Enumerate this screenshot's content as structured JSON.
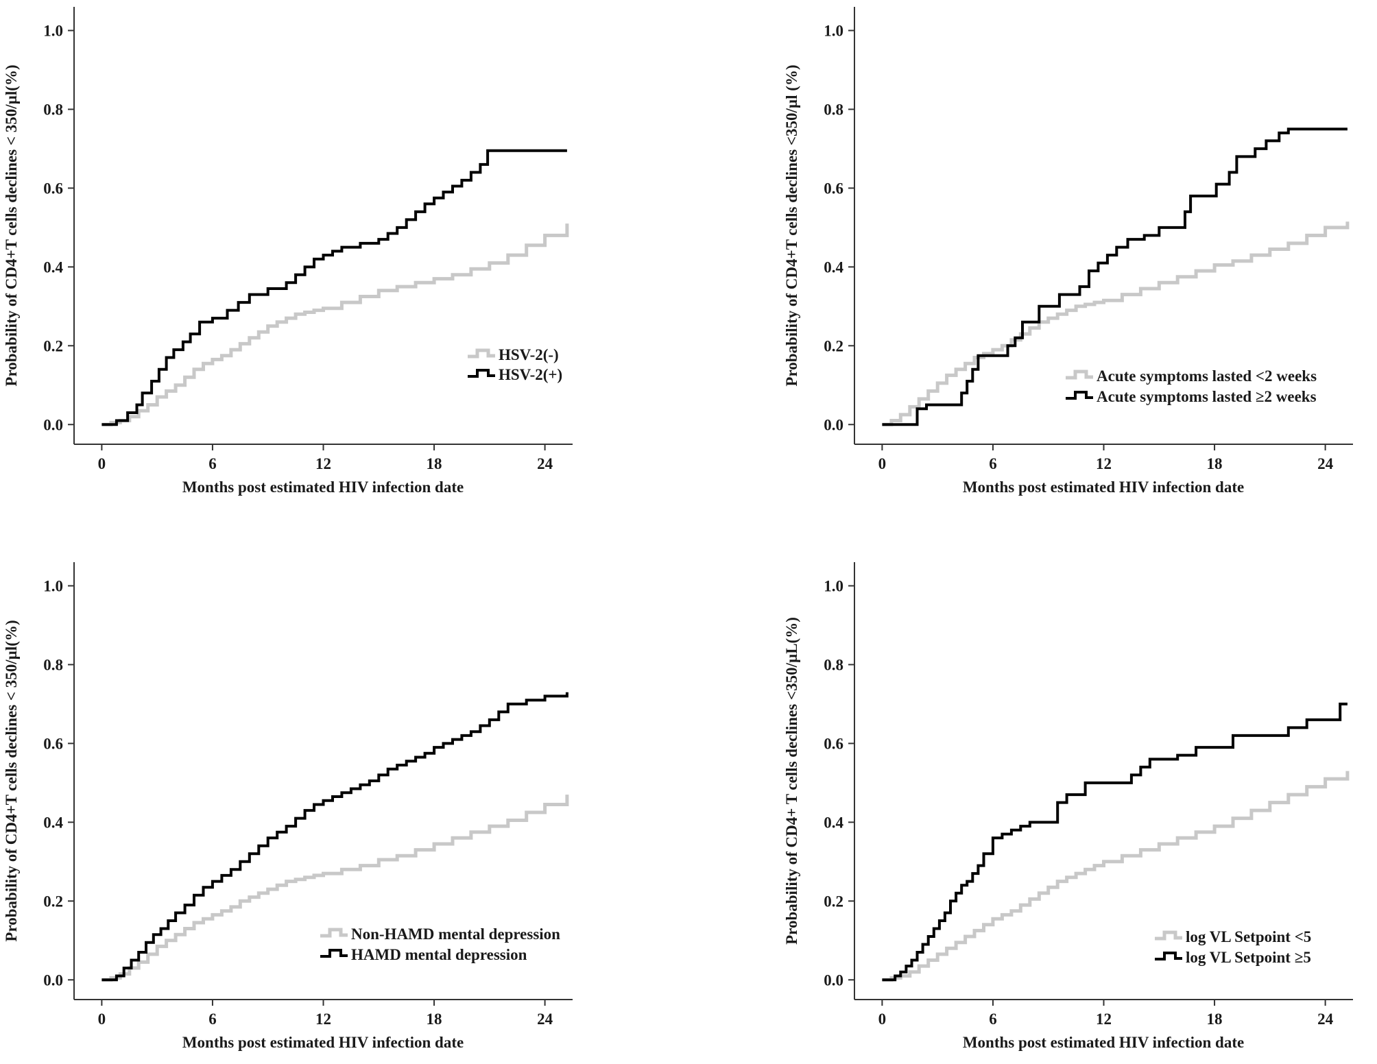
{
  "figure": {
    "colors": {
      "axis": "#333333",
      "series_light": "#c8c8c8",
      "series_dark": "#000000",
      "background": "#ffffff"
    }
  },
  "chart_data": [
    {
      "type": "line",
      "step": true,
      "xlabel": "Months post estimated HIV infection date",
      "ylabel": "Probability of CD4+T cells declines < 350/µl(%)",
      "xlim": [
        -1.5,
        25.5
      ],
      "ylim": [
        -0.05,
        1.06
      ],
      "xticks": [
        "0",
        "6",
        "12",
        "18",
        "24"
      ],
      "yticks": [
        "0.0",
        "0.2",
        "0.4",
        "0.6",
        "0.8",
        "1.0"
      ],
      "legend_position": "lower-right",
      "series": [
        {
          "name": "HSV-2(-)",
          "style": "light",
          "x": [
            0,
            0.5,
            1,
            1.5,
            2,
            2.5,
            3,
            3.5,
            4,
            4.5,
            5,
            5.5,
            6,
            6.5,
            7,
            7.5,
            8,
            8.5,
            9,
            9.5,
            10,
            10.5,
            11,
            11.5,
            12,
            13,
            14,
            15,
            16,
            17,
            18,
            19,
            20,
            21,
            22,
            23,
            24,
            25.2
          ],
          "y": [
            0,
            0.005,
            0.01,
            0.02,
            0.035,
            0.05,
            0.07,
            0.085,
            0.1,
            0.12,
            0.14,
            0.155,
            0.165,
            0.175,
            0.19,
            0.205,
            0.22,
            0.235,
            0.25,
            0.26,
            0.27,
            0.28,
            0.285,
            0.29,
            0.295,
            0.31,
            0.325,
            0.34,
            0.35,
            0.36,
            0.37,
            0.38,
            0.395,
            0.41,
            0.43,
            0.455,
            0.48,
            0.51
          ]
        },
        {
          "name": "HSV-2(+)",
          "style": "dark",
          "x": [
            0,
            0.8,
            1.4,
            1.9,
            2.2,
            2.7,
            3.1,
            3.5,
            3.9,
            4.4,
            4.8,
            5.3,
            6,
            6.8,
            7.4,
            8,
            9,
            10,
            10.5,
            11,
            11.5,
            12,
            12.5,
            13,
            14,
            15,
            15.5,
            16,
            16.5,
            17,
            17.5,
            18,
            18.5,
            19,
            19.5,
            20,
            20.5,
            20.9,
            25.2
          ],
          "y": [
            0,
            0.01,
            0.03,
            0.05,
            0.08,
            0.11,
            0.14,
            0.17,
            0.19,
            0.21,
            0.23,
            0.26,
            0.27,
            0.29,
            0.31,
            0.33,
            0.345,
            0.36,
            0.38,
            0.4,
            0.42,
            0.43,
            0.44,
            0.45,
            0.46,
            0.47,
            0.485,
            0.5,
            0.52,
            0.54,
            0.56,
            0.575,
            0.59,
            0.605,
            0.62,
            0.64,
            0.66,
            0.695,
            0.695
          ]
        }
      ]
    },
    {
      "type": "line",
      "step": true,
      "xlabel": "Months post estimated HIV infection date",
      "ylabel": "Probability of CD4+T cells declines <350/µl (%)",
      "xlim": [
        -1.5,
        25.5
      ],
      "ylim": [
        -0.05,
        1.06
      ],
      "xticks": [
        "0",
        "6",
        "12",
        "18",
        "24"
      ],
      "yticks": [
        "0.0",
        "0.2",
        "0.4",
        "0.6",
        "0.8",
        "1.0"
      ],
      "legend_position": "lower-right",
      "series": [
        {
          "name": "Acute symptoms lasted <2 weeks",
          "style": "light",
          "x": [
            0,
            0.5,
            1,
            1.5,
            2,
            2.5,
            3,
            3.5,
            4,
            4.5,
            5,
            5.5,
            6,
            6.5,
            7,
            7.5,
            8,
            8.5,
            9,
            9.5,
            10,
            10.5,
            11,
            11.5,
            12,
            13,
            14,
            15,
            16,
            17,
            18,
            19,
            20,
            21,
            22,
            23,
            24,
            25.2
          ],
          "y": [
            0,
            0.01,
            0.025,
            0.045,
            0.065,
            0.085,
            0.105,
            0.125,
            0.14,
            0.155,
            0.17,
            0.18,
            0.19,
            0.2,
            0.215,
            0.23,
            0.245,
            0.26,
            0.27,
            0.28,
            0.29,
            0.3,
            0.305,
            0.31,
            0.315,
            0.33,
            0.345,
            0.36,
            0.375,
            0.39,
            0.405,
            0.415,
            0.43,
            0.445,
            0.46,
            0.48,
            0.5,
            0.515
          ]
        },
        {
          "name": "Acute symptoms lasted ≥2 weeks",
          "style": "dark",
          "x": [
            0,
            1.9,
            2.4,
            4.3,
            4.6,
            4.9,
            5.2,
            5.5,
            6.8,
            7.2,
            7.6,
            8.5,
            9.6,
            10.7,
            11.2,
            11.7,
            12.2,
            12.7,
            13.3,
            14.2,
            15,
            16.4,
            16.7,
            18.1,
            18.8,
            19.2,
            20.2,
            20.8,
            21.5,
            22,
            25.2
          ],
          "y": [
            0,
            0.04,
            0.05,
            0.08,
            0.11,
            0.14,
            0.175,
            0.175,
            0.2,
            0.22,
            0.26,
            0.3,
            0.33,
            0.35,
            0.39,
            0.41,
            0.43,
            0.45,
            0.47,
            0.48,
            0.5,
            0.54,
            0.58,
            0.61,
            0.64,
            0.68,
            0.7,
            0.72,
            0.74,
            0.75,
            0.75
          ]
        }
      ]
    },
    {
      "type": "line",
      "step": true,
      "xlabel": "Months post estimated HIV infection date",
      "ylabel": "Probability of CD4+T cells declines < 350/µl(%)",
      "xlim": [
        -1.5,
        25.5
      ],
      "ylim": [
        -0.05,
        1.06
      ],
      "xticks": [
        "0",
        "6",
        "12",
        "18",
        "24"
      ],
      "yticks": [
        "0.0",
        "0.2",
        "0.4",
        "0.6",
        "0.8",
        "1.0"
      ],
      "legend_position": "lower-right",
      "series": [
        {
          "name": "Non-HAMD mental depression",
          "style": "light",
          "x": [
            0,
            0.5,
            1,
            1.5,
            2,
            2.5,
            3,
            3.5,
            4,
            4.5,
            5,
            5.5,
            6,
            6.5,
            7,
            7.5,
            8,
            8.5,
            9,
            9.5,
            10,
            10.5,
            11,
            11.5,
            12,
            13,
            14,
            15,
            16,
            17,
            18,
            19,
            20,
            21,
            22,
            23,
            24,
            25.2
          ],
          "y": [
            0,
            0.005,
            0.015,
            0.03,
            0.045,
            0.065,
            0.085,
            0.1,
            0.115,
            0.13,
            0.145,
            0.155,
            0.165,
            0.175,
            0.185,
            0.2,
            0.21,
            0.22,
            0.23,
            0.24,
            0.25,
            0.255,
            0.26,
            0.265,
            0.27,
            0.28,
            0.29,
            0.305,
            0.315,
            0.33,
            0.345,
            0.36,
            0.375,
            0.39,
            0.405,
            0.425,
            0.445,
            0.47
          ]
        },
        {
          "name": "HAMD mental depression",
          "style": "dark",
          "x": [
            0,
            0.8,
            1.2,
            1.6,
            2,
            2.4,
            2.8,
            3.2,
            3.6,
            4,
            4.5,
            5,
            5.5,
            6,
            6.5,
            7,
            7.5,
            8,
            8.5,
            9,
            9.5,
            10,
            10.5,
            11,
            11.5,
            12,
            12.5,
            13,
            13.5,
            14,
            14.5,
            15,
            15.5,
            16,
            16.5,
            17,
            17.5,
            18,
            18.5,
            19,
            19.5,
            20,
            20.5,
            21,
            21.5,
            22,
            23,
            24,
            25.2
          ],
          "y": [
            0,
            0.01,
            0.03,
            0.05,
            0.07,
            0.095,
            0.115,
            0.13,
            0.15,
            0.17,
            0.19,
            0.215,
            0.235,
            0.25,
            0.265,
            0.28,
            0.3,
            0.32,
            0.34,
            0.36,
            0.375,
            0.39,
            0.41,
            0.43,
            0.445,
            0.455,
            0.465,
            0.475,
            0.485,
            0.495,
            0.505,
            0.52,
            0.535,
            0.545,
            0.555,
            0.565,
            0.575,
            0.59,
            0.6,
            0.61,
            0.62,
            0.63,
            0.645,
            0.66,
            0.68,
            0.7,
            0.71,
            0.72,
            0.73
          ]
        }
      ]
    },
    {
      "type": "line",
      "step": true,
      "xlabel": "Months post estimated HIV infection date",
      "ylabel": "Probability of CD4+ T cells declines <350/µL(%)",
      "xlim": [
        -1.5,
        25.5
      ],
      "ylim": [
        -0.05,
        1.06
      ],
      "xticks": [
        "0",
        "6",
        "12",
        "18",
        "24"
      ],
      "yticks": [
        "0.0",
        "0.2",
        "0.4",
        "0.6",
        "0.8",
        "1.0"
      ],
      "legend_position": "lower-right",
      "series": [
        {
          "name": "log VL Setpoint <5",
          "style": "light",
          "x": [
            0,
            0.5,
            1,
            1.5,
            2,
            2.5,
            3,
            3.5,
            4,
            4.5,
            5,
            5.5,
            6,
            6.5,
            7,
            7.5,
            8,
            8.5,
            9,
            9.5,
            10,
            10.5,
            11,
            11.5,
            12,
            13,
            14,
            15,
            16,
            17,
            18,
            19,
            20,
            21,
            22,
            23,
            24,
            25.2
          ],
          "y": [
            0,
            0.005,
            0.01,
            0.02,
            0.035,
            0.05,
            0.065,
            0.08,
            0.095,
            0.11,
            0.125,
            0.14,
            0.155,
            0.165,
            0.175,
            0.19,
            0.205,
            0.22,
            0.235,
            0.25,
            0.26,
            0.27,
            0.28,
            0.29,
            0.3,
            0.315,
            0.33,
            0.345,
            0.36,
            0.375,
            0.39,
            0.41,
            0.43,
            0.45,
            0.47,
            0.49,
            0.51,
            0.53
          ]
        },
        {
          "name": "log VL Setpoint ≥5",
          "style": "dark",
          "x": [
            0,
            0.7,
            1,
            1.3,
            1.6,
            1.9,
            2.2,
            2.5,
            2.8,
            3.1,
            3.4,
            3.7,
            4,
            4.3,
            4.6,
            4.9,
            5.2,
            5.5,
            6,
            6.5,
            7,
            7.5,
            8,
            9.5,
            10,
            11,
            13.5,
            14,
            14.5,
            16,
            17,
            19,
            22,
            23,
            24.8,
            25.2
          ],
          "y": [
            0,
            0.01,
            0.02,
            0.035,
            0.05,
            0.07,
            0.09,
            0.11,
            0.13,
            0.15,
            0.17,
            0.2,
            0.22,
            0.24,
            0.25,
            0.27,
            0.29,
            0.32,
            0.36,
            0.37,
            0.38,
            0.39,
            0.4,
            0.45,
            0.47,
            0.5,
            0.52,
            0.54,
            0.56,
            0.57,
            0.59,
            0.62,
            0.64,
            0.66,
            0.7,
            0.7
          ]
        }
      ]
    }
  ]
}
